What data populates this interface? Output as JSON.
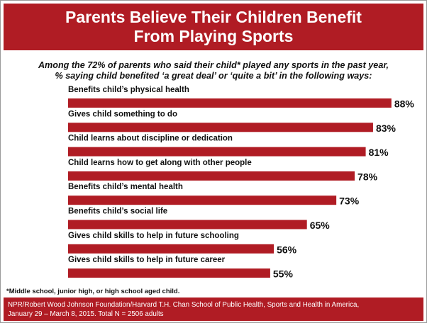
{
  "header": {
    "title_line1": "Parents Believe Their Children Benefit",
    "title_line2": "From Playing Sports"
  },
  "subtitle": {
    "line1": "Among the 72% of parents who said their child* played any sports in the past year,",
    "line2": "% saying child benefited ‘a great deal’ or ‘quite a bit’ in the following ways:"
  },
  "chart_data": {
    "type": "bar",
    "orientation": "horizontal",
    "categories": [
      "Benefits child’s physical health",
      "Gives child something to do",
      "Child learns about discipline or dedication",
      "Child learns how to get along with other people",
      "Benefits child’s mental health",
      "Benefits child’s social life",
      "Gives child skills to help in future schooling",
      "Gives child skills to help in future career"
    ],
    "values": [
      88,
      83,
      81,
      78,
      73,
      65,
      56,
      55
    ],
    "value_labels": [
      "88%",
      "83%",
      "81%",
      "78%",
      "73%",
      "65%",
      "56%",
      "55%"
    ],
    "bar_color": "#b01c24",
    "xlim": [
      0,
      100
    ],
    "grid": false,
    "legend": "none"
  },
  "footnote": "*Middle school, junior high, or high school aged child.",
  "source": {
    "line1": "NPR/Robert Wood Johnson Foundation/Harvard T.H. Chan School of Public Health, Sports and Health in America,",
    "line2": "January 29 – March 8, 2015. Total N = 2506 adults"
  },
  "colors": {
    "accent": "#b01c24",
    "text": "#111111"
  }
}
